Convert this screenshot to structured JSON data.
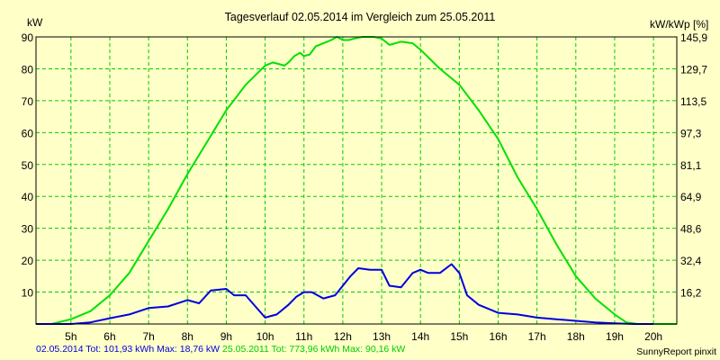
{
  "chart_data": {
    "type": "line",
    "title": "Tagesverlauf 02.05.2014 im Vergleich zum 25.05.2011",
    "ylabel_left": "kW",
    "ylabel_right": "kW/kWp [%]",
    "ylim": [
      0,
      90
    ],
    "xlim": [
      4.1,
      20.6
    ],
    "grid": true,
    "y_ticks_left": [
      "90",
      "80",
      "70",
      "60",
      "50",
      "40",
      "30",
      "20",
      "10"
    ],
    "y_ticks_left_values": [
      90,
      80,
      70,
      60,
      50,
      40,
      30,
      20,
      10
    ],
    "y_ticks_right": [
      "145,9",
      "129,7",
      "113,5",
      "97,3",
      "81,1",
      "64,9",
      "48,6",
      "32,4",
      "16,2"
    ],
    "x_ticks": [
      "5h",
      "6h",
      "7h",
      "8h",
      "9h",
      "10h",
      "11h",
      "12h",
      "13h",
      "14h",
      "15h",
      "16h",
      "17h",
      "18h",
      "19h",
      "20h"
    ],
    "x_tick_values": [
      5,
      6,
      7,
      8,
      9,
      10,
      11,
      12,
      13,
      14,
      15,
      16,
      17,
      18,
      19,
      20
    ],
    "series": [
      {
        "name": "25.05.2011",
        "color": "#00e000",
        "x": [
          4.1,
          4.5,
          5.0,
          5.5,
          6.0,
          6.5,
          7.0,
          7.5,
          8.0,
          8.5,
          9.0,
          9.5,
          10.0,
          10.2,
          10.35,
          10.5,
          10.6,
          10.75,
          10.9,
          11.0,
          11.15,
          11.3,
          11.5,
          11.7,
          11.85,
          12.0,
          12.15,
          12.3,
          12.5,
          12.8,
          13.0,
          13.2,
          13.5,
          13.8,
          14.0,
          14.5,
          15.0,
          15.5,
          16.0,
          16.5,
          17.0,
          17.5,
          18.0,
          18.5,
          19.0,
          19.3,
          19.6,
          20.0,
          20.6
        ],
        "y": [
          0,
          0,
          1.5,
          4,
          9,
          16,
          26,
          36,
          47,
          57,
          67,
          75,
          81,
          82,
          81.5,
          81,
          82,
          84,
          85,
          84,
          84.5,
          87,
          88,
          89,
          90,
          89,
          89,
          89.5,
          90,
          90,
          89.5,
          87.5,
          88.5,
          88,
          86,
          80,
          75,
          67,
          58,
          46,
          36,
          25,
          15,
          8,
          3,
          0.5,
          0,
          0,
          0
        ]
      },
      {
        "name": "02.05.2014",
        "color": "#0000e0",
        "x": [
          4.1,
          5.0,
          5.5,
          6.0,
          6.5,
          7.0,
          7.5,
          8.0,
          8.3,
          8.6,
          9.0,
          9.2,
          9.5,
          10.0,
          10.3,
          10.6,
          10.8,
          11.0,
          11.2,
          11.5,
          11.8,
          12.0,
          12.2,
          12.4,
          12.7,
          13.0,
          13.2,
          13.5,
          13.8,
          14.0,
          14.2,
          14.5,
          14.8,
          15.0,
          15.2,
          15.5,
          16.0,
          16.5,
          17.0,
          17.5,
          18.0,
          18.5,
          19.0,
          19.5,
          20.0
        ],
        "y": [
          0,
          0,
          0.5,
          1.8,
          3,
          5,
          5.5,
          7.5,
          6.5,
          10.5,
          11,
          9,
          9,
          2,
          3,
          6,
          8.5,
          10,
          10,
          8,
          9,
          12,
          15,
          17.5,
          17,
          17,
          12,
          11.5,
          16,
          17,
          16,
          16,
          18.76,
          16,
          9,
          6,
          3.5,
          3,
          2,
          1.5,
          1,
          0.5,
          0.2,
          0,
          0
        ]
      }
    ]
  },
  "footer": {
    "series1_label": "02.05.2014 Tot: 101,93 kWh Max: 18,76 kW",
    "series2_label": "25.05.2011 Tot: 773,96 kWh Max: 90,16 kW",
    "credit": "SunnyReport pinxit"
  },
  "colors": {
    "background": "#ffffc8",
    "grid": "#00cc00",
    "green": "#00e000",
    "blue": "#0000e0"
  }
}
